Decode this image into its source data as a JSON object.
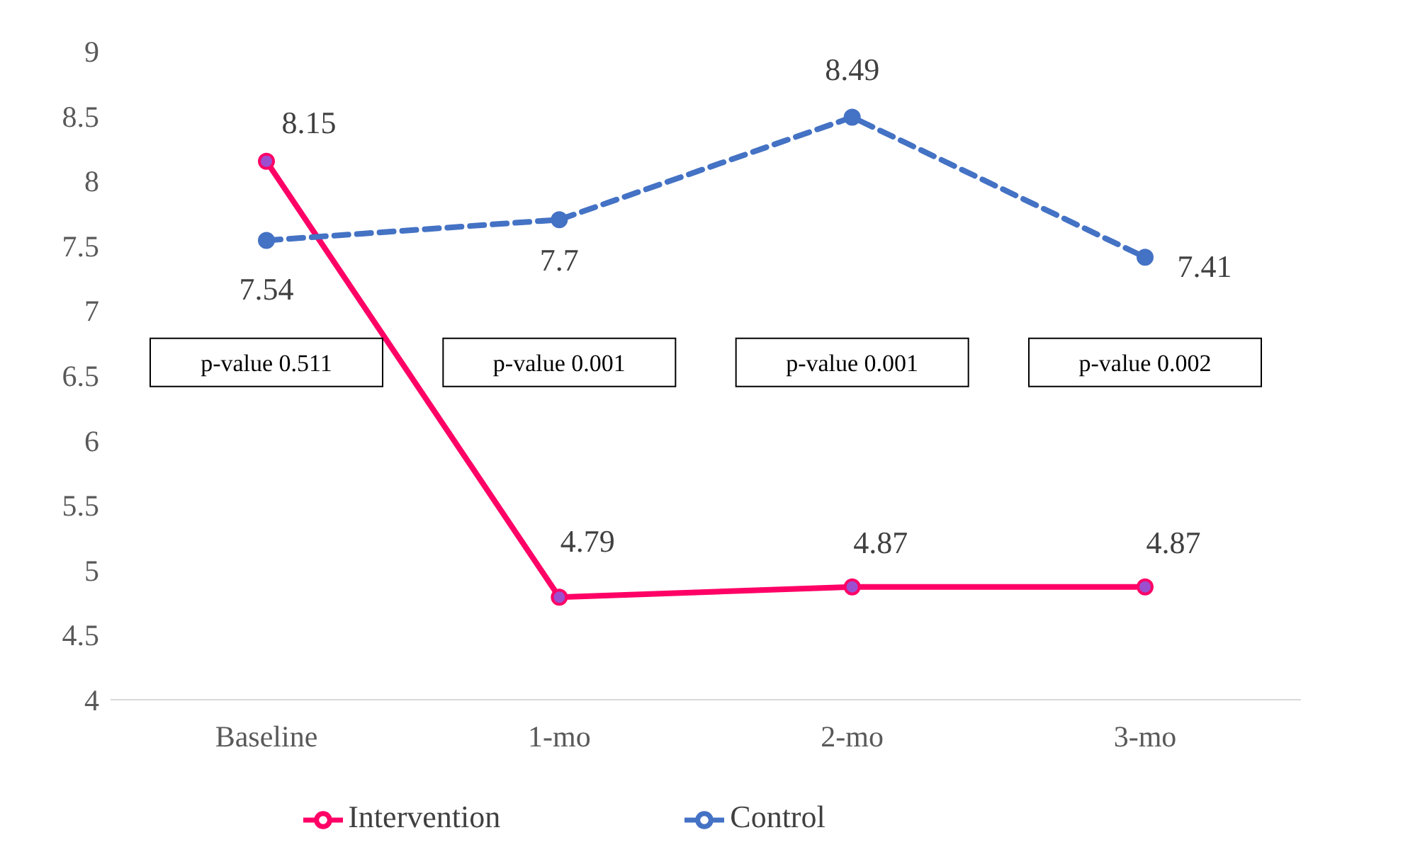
{
  "chart_data": {
    "type": "line",
    "categories": [
      "Baseline",
      "1-mo",
      "2-mo",
      "3-mo"
    ],
    "series": [
      {
        "name": "Intervention",
        "color": "#ff0066",
        "values": [
          8.15,
          4.79,
          4.87,
          4.87
        ],
        "line_style": "solid"
      },
      {
        "name": "Control",
        "color": "#4472c4",
        "values": [
          7.54,
          7.7,
          8.49,
          7.41
        ],
        "line_style": "dashed"
      }
    ],
    "ylim": [
      4,
      9
    ],
    "yticks": [
      4,
      4.5,
      5,
      5.5,
      6,
      6.5,
      7,
      7.5,
      8,
      8.5,
      9
    ],
    "grid": false,
    "legend": "bottom",
    "marker": "circle",
    "data_labels": true,
    "annotations": [
      "p-value 0.511",
      "p-value 0.001",
      "p-value 0.001",
      "p-value 0.002"
    ]
  }
}
